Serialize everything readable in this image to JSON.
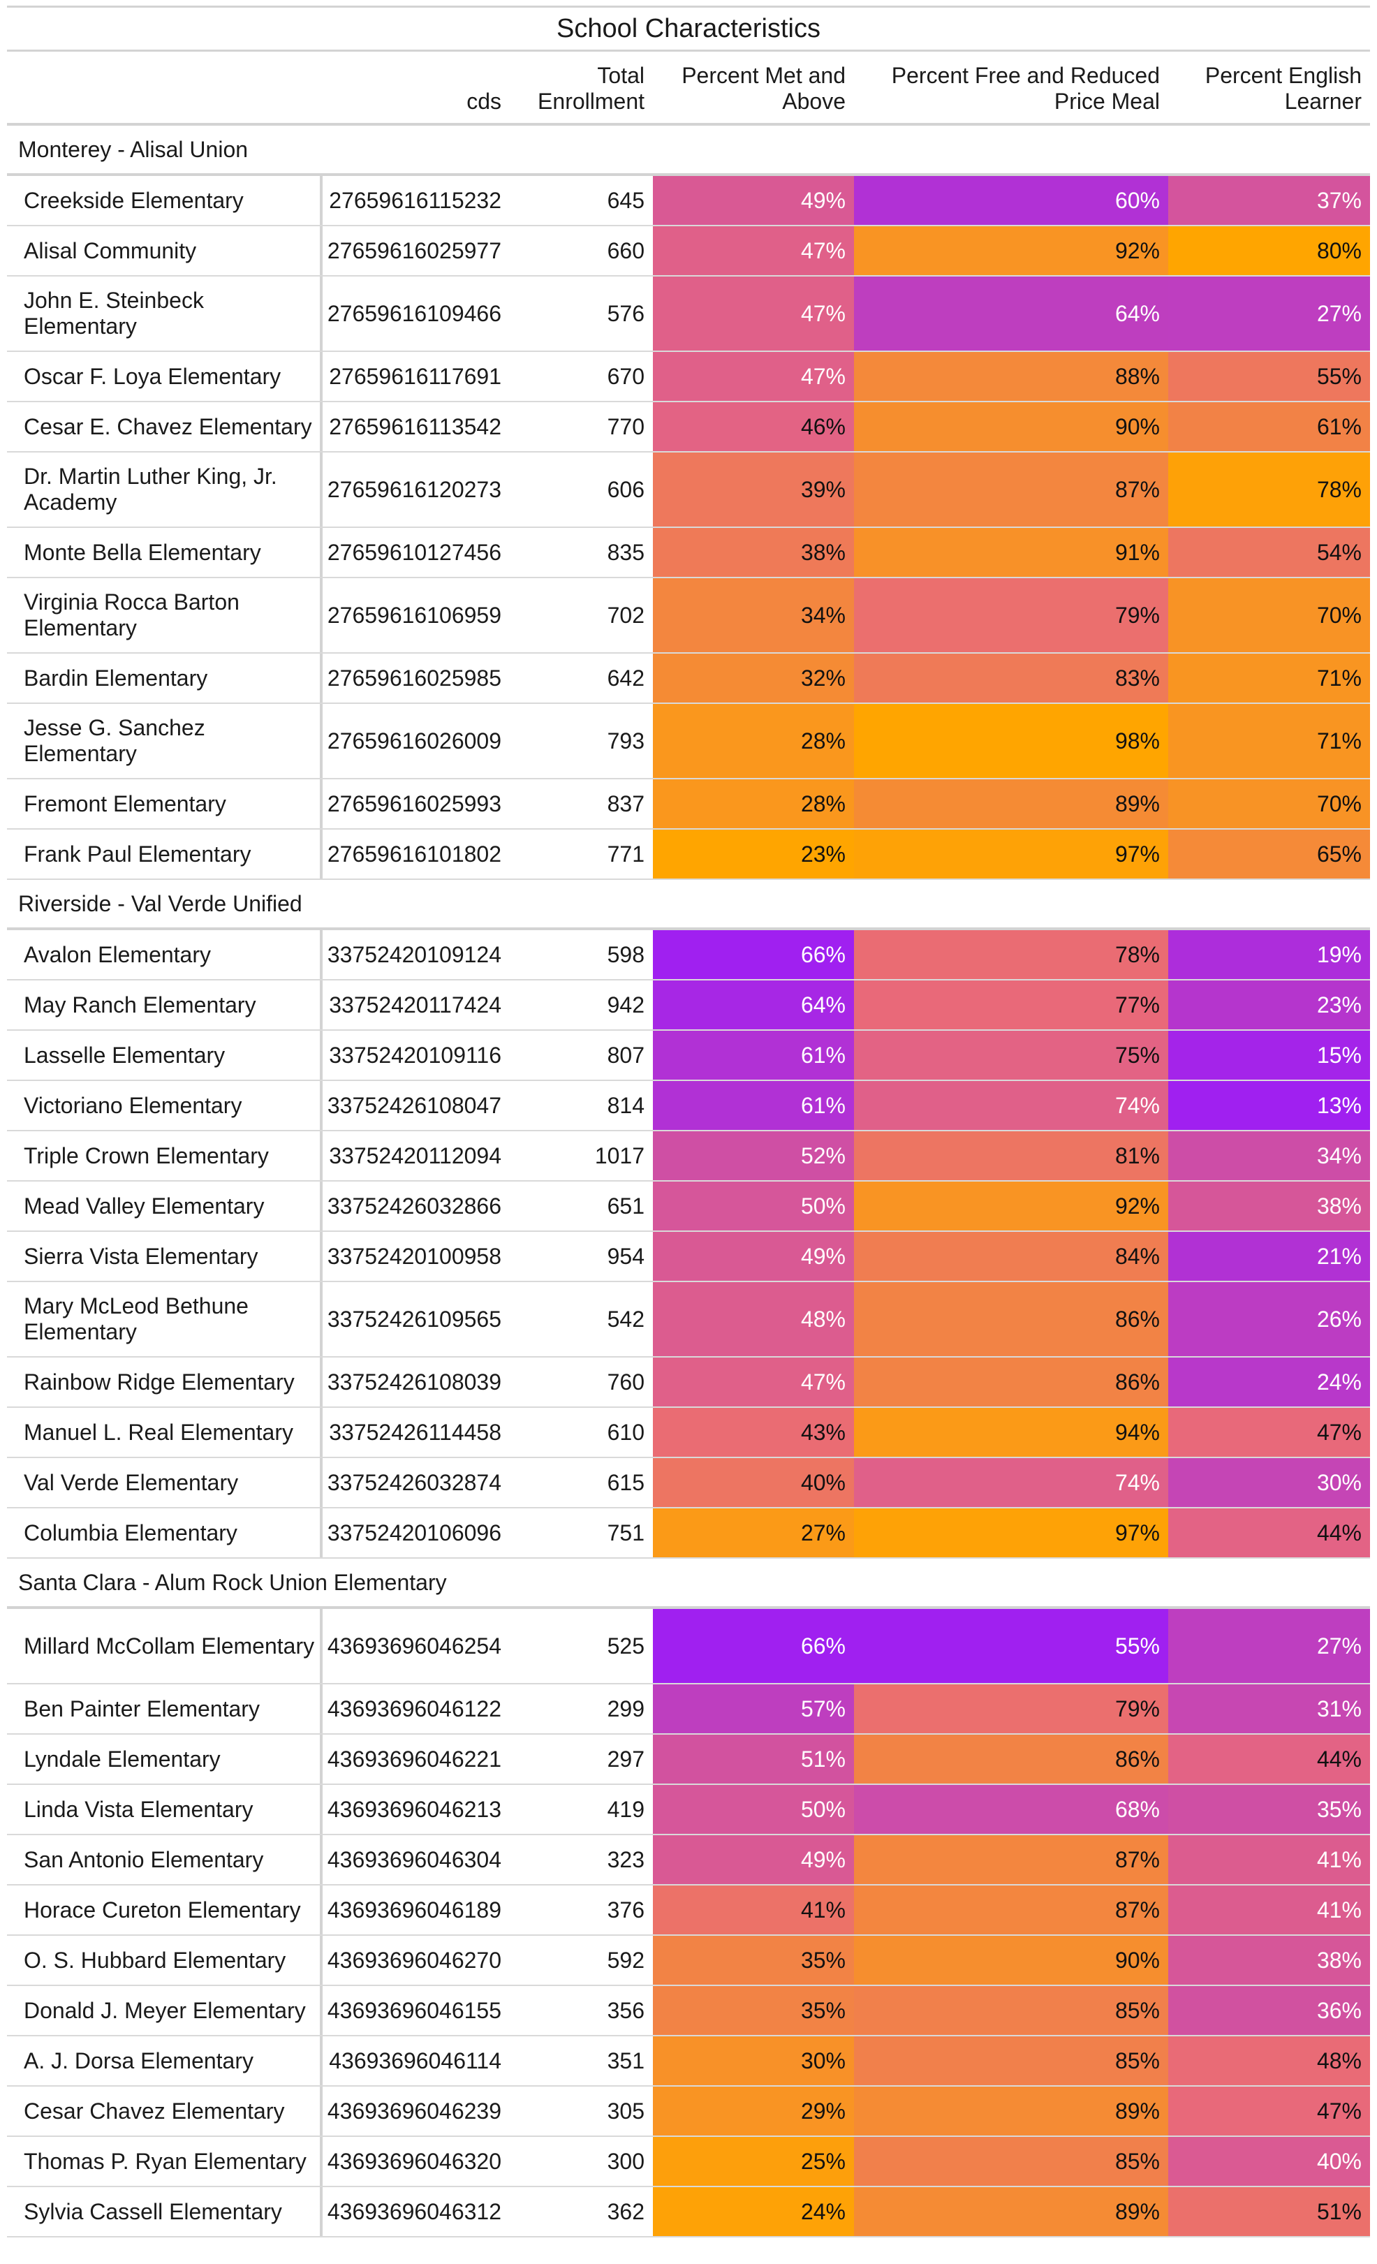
{
  "table": {
    "title": "School Characteristics",
    "columns": {
      "name": "",
      "cds": "cds",
      "enrollment": "Total Enrollment",
      "met": "Percent Met and Above",
      "frpm": "Percent Free and Reduced Price Meal",
      "el": "Percent English Learner"
    },
    "groups": [
      {
        "label": "Monterey - Alisal Union",
        "rows": [
          {
            "name": "Creekside Elementary",
            "cds": "27659616115232",
            "enrollment": 645,
            "met": 49,
            "frpm": 60,
            "el": 37
          },
          {
            "name": "Alisal Community",
            "cds": "27659616025977",
            "enrollment": 660,
            "met": 47,
            "frpm": 92,
            "el": 80
          },
          {
            "name": "John E. Steinbeck Elementary",
            "cds": "27659616109466",
            "enrollment": 576,
            "met": 47,
            "frpm": 64,
            "el": 27
          },
          {
            "name": "Oscar F. Loya Elementary",
            "cds": "27659616117691",
            "enrollment": 670,
            "met": 47,
            "frpm": 88,
            "el": 55
          },
          {
            "name": "Cesar E. Chavez Elementary",
            "cds": "27659616113542",
            "enrollment": 770,
            "met": 46,
            "frpm": 90,
            "el": 61
          },
          {
            "name": "Dr. Martin Luther King, Jr. Academy",
            "cds": "27659616120273",
            "enrollment": 606,
            "met": 39,
            "frpm": 87,
            "el": 78
          },
          {
            "name": "Monte Bella Elementary",
            "cds": "27659610127456",
            "enrollment": 835,
            "met": 38,
            "frpm": 91,
            "el": 54
          },
          {
            "name": "Virginia Rocca Barton Elementary",
            "cds": "27659616106959",
            "enrollment": 702,
            "met": 34,
            "frpm": 79,
            "el": 70
          },
          {
            "name": "Bardin Elementary",
            "cds": "27659616025985",
            "enrollment": 642,
            "met": 32,
            "frpm": 83,
            "el": 71
          },
          {
            "name": "Jesse G. Sanchez Elementary",
            "cds": "27659616026009",
            "enrollment": 793,
            "met": 28,
            "frpm": 98,
            "el": 71
          },
          {
            "name": "Fremont Elementary",
            "cds": "27659616025993",
            "enrollment": 837,
            "met": 28,
            "frpm": 89,
            "el": 70
          },
          {
            "name": "Frank Paul Elementary",
            "cds": "27659616101802",
            "enrollment": 771,
            "met": 23,
            "frpm": 97,
            "el": 65
          }
        ]
      },
      {
        "label": "Riverside - Val Verde Unified",
        "rows": [
          {
            "name": "Avalon Elementary",
            "cds": "33752420109124",
            "enrollment": 598,
            "met": 66,
            "frpm": 78,
            "el": 19
          },
          {
            "name": "May Ranch Elementary",
            "cds": "33752420117424",
            "enrollment": 942,
            "met": 64,
            "frpm": 77,
            "el": 23
          },
          {
            "name": "Lasselle Elementary",
            "cds": "33752420109116",
            "enrollment": 807,
            "met": 61,
            "frpm": 75,
            "el": 15
          },
          {
            "name": "Victoriano Elementary",
            "cds": "33752426108047",
            "enrollment": 814,
            "met": 61,
            "frpm": 74,
            "el": 13
          },
          {
            "name": "Triple Crown Elementary",
            "cds": "33752420112094",
            "enrollment": 1017,
            "met": 52,
            "frpm": 81,
            "el": 34
          },
          {
            "name": "Mead Valley Elementary",
            "cds": "33752426032866",
            "enrollment": 651,
            "met": 50,
            "frpm": 92,
            "el": 38
          },
          {
            "name": "Sierra Vista Elementary",
            "cds": "33752420100958",
            "enrollment": 954,
            "met": 49,
            "frpm": 84,
            "el": 21
          },
          {
            "name": "Mary McLeod Bethune Elementary",
            "cds": "33752426109565",
            "enrollment": 542,
            "met": 48,
            "frpm": 86,
            "el": 26
          },
          {
            "name": "Rainbow Ridge Elementary",
            "cds": "33752426108039",
            "enrollment": 760,
            "met": 47,
            "frpm": 86,
            "el": 24
          },
          {
            "name": "Manuel L. Real Elementary",
            "cds": "33752426114458",
            "enrollment": 610,
            "met": 43,
            "frpm": 94,
            "el": 47
          },
          {
            "name": "Val Verde Elementary",
            "cds": "33752426032874",
            "enrollment": 615,
            "met": 40,
            "frpm": 74,
            "el": 30
          },
          {
            "name": "Columbia Elementary",
            "cds": "33752420106096",
            "enrollment": 751,
            "met": 27,
            "frpm": 97,
            "el": 44
          }
        ]
      },
      {
        "label": "Santa Clara - Alum Rock Union Elementary",
        "rows": [
          {
            "name": "Millard McCollam Elementary",
            "cds": "43693696046254",
            "enrollment": 525,
            "met": 66,
            "frpm": 55,
            "el": 27
          },
          {
            "name": "Ben Painter Elementary",
            "cds": "43693696046122",
            "enrollment": 299,
            "met": 57,
            "frpm": 79,
            "el": 31
          },
          {
            "name": "Lyndale Elementary",
            "cds": "43693696046221",
            "enrollment": 297,
            "met": 51,
            "frpm": 86,
            "el": 44
          },
          {
            "name": "Linda Vista Elementary",
            "cds": "43693696046213",
            "enrollment": 419,
            "met": 50,
            "frpm": 68,
            "el": 35
          },
          {
            "name": "San Antonio Elementary",
            "cds": "43693696046304",
            "enrollment": 323,
            "met": 49,
            "frpm": 87,
            "el": 41
          },
          {
            "name": "Horace Cureton Elementary",
            "cds": "43693696046189",
            "enrollment": 376,
            "met": 41,
            "frpm": 87,
            "el": 41
          },
          {
            "name": "O. S. Hubbard Elementary",
            "cds": "43693696046270",
            "enrollment": 592,
            "met": 35,
            "frpm": 90,
            "el": 38
          },
          {
            "name": "Donald J. Meyer Elementary",
            "cds": "43693696046155",
            "enrollment": 356,
            "met": 35,
            "frpm": 85,
            "el": 36
          },
          {
            "name": "A. J. Dorsa Elementary",
            "cds": "43693696046114",
            "enrollment": 351,
            "met": 30,
            "frpm": 85,
            "el": 48
          },
          {
            "name": "Cesar Chavez Elementary",
            "cds": "43693696046239",
            "enrollment": 305,
            "met": 29,
            "frpm": 89,
            "el": 47
          },
          {
            "name": "Thomas P. Ryan Elementary",
            "cds": "43693696046320",
            "enrollment": 300,
            "met": 25,
            "frpm": 85,
            "el": 40
          },
          {
            "name": "Sylvia Cassell Elementary",
            "cds": "43693696046312",
            "enrollment": 362,
            "met": 24,
            "frpm": 89,
            "el": 51
          }
        ]
      }
    ]
  },
  "colors": {
    "scale_low": "#a020f0",
    "scale_mid": "#e8687c",
    "scale_high": "#ffa500",
    "percent_suffix": "%"
  }
}
